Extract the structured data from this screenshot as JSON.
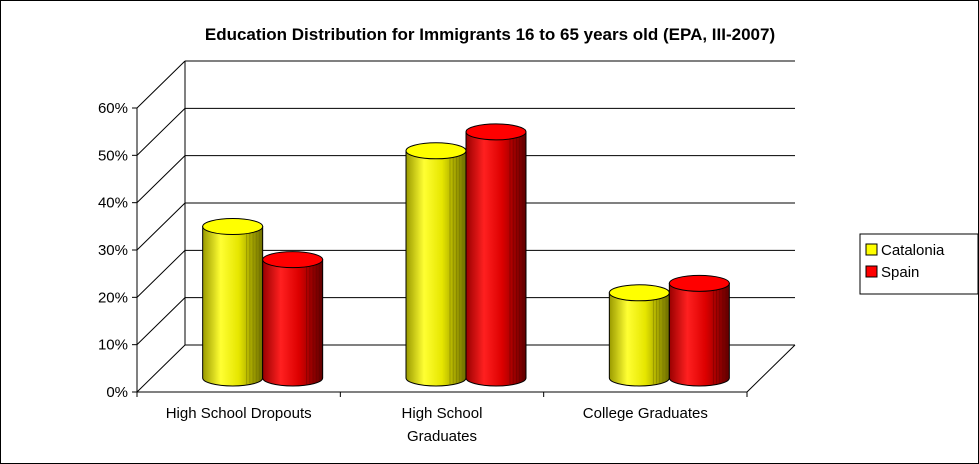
{
  "chart_data": {
    "type": "bar",
    "title": "Education Distribution for Immigrants 16 to 65 years old (EPA, III-2007)",
    "categories": [
      [
        "High School Dropouts"
      ],
      [
        "High School",
        "Graduates"
      ],
      [
        "College Graduates"
      ]
    ],
    "series": [
      {
        "name": "Catalonia",
        "values": [
          32,
          48,
          18
        ],
        "color": "#FFFF00"
      },
      {
        "name": "Spain",
        "values": [
          25,
          52,
          20
        ],
        "color": "#FF0000"
      }
    ],
    "ylim": [
      0,
      60
    ],
    "yticks": [
      "0%",
      "10%",
      "20%",
      "30%",
      "40%",
      "50%",
      "60%"
    ],
    "ytick_values": [
      0,
      10,
      20,
      30,
      40,
      50,
      60
    ],
    "grid": true,
    "legend": "right",
    "style": "3d-cylinder"
  }
}
